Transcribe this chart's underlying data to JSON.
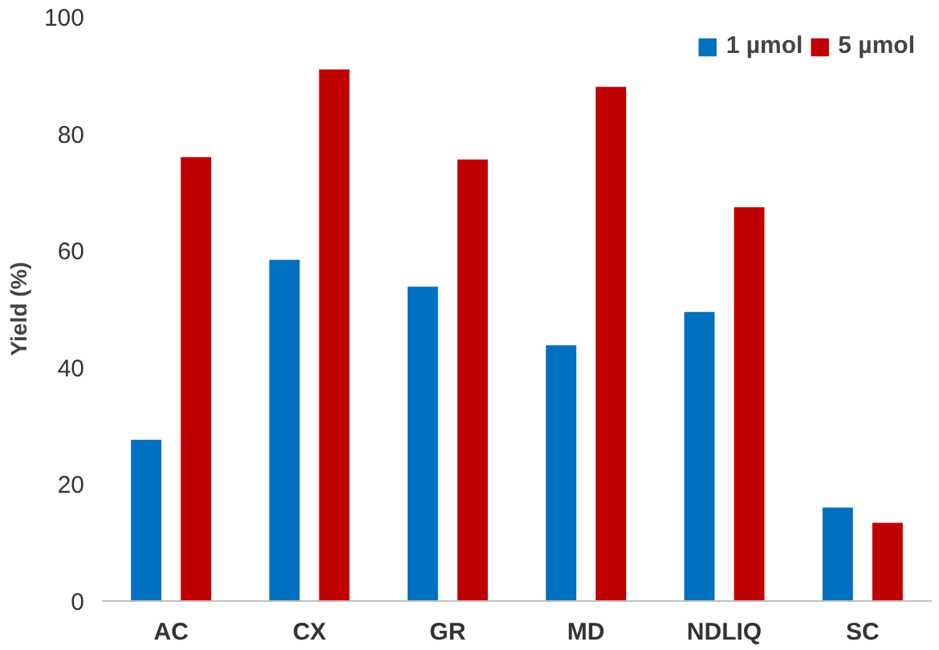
{
  "chart_data": {
    "type": "bar",
    "ylabel": "Yield (%)",
    "categories": [
      "AC",
      "CX",
      "GR",
      "MD",
      "NDLIQ",
      "SC"
    ],
    "series": [
      {
        "name": "1 µmol",
        "color": "#0070c0",
        "values": [
          27.6,
          58.4,
          53.8,
          43.8,
          49.5,
          16.0
        ]
      },
      {
        "name": "5 µmol",
        "color": "#c00000",
        "values": [
          76.0,
          91.0,
          75.6,
          88.0,
          67.4,
          13.4
        ]
      }
    ],
    "ylim": [
      0,
      100
    ],
    "yticks": [
      0,
      20,
      40,
      60,
      80,
      100
    ],
    "grid": false,
    "legend": "top right"
  }
}
